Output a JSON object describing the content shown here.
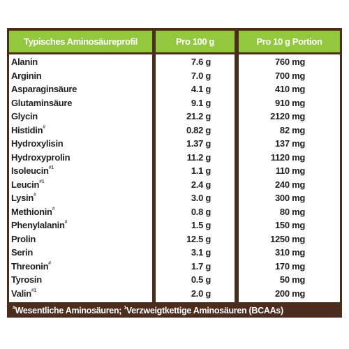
{
  "table": {
    "header": [
      "Typisches Aminosäureprofil",
      "Pro 100 g",
      "Pro 10 g Portion"
    ],
    "rows": [
      {
        "name": "Alanin",
        "sup": null,
        "per100": "7.6 g",
        "portion": "760 mg"
      },
      {
        "name": "Arginin",
        "sup": null,
        "per100": "7.0 g",
        "portion": "700 mg"
      },
      {
        "name": "Asparaginsäure",
        "sup": null,
        "per100": "4.1 g",
        "portion": "410 mg"
      },
      {
        "name": "Glutaminsäure",
        "sup": null,
        "per100": "9.1 g",
        "portion": "910 mg"
      },
      {
        "name": "Glycin",
        "sup": null,
        "per100": "21.2 g",
        "portion": "2120 mg"
      },
      {
        "name": "Histidin",
        "sup": "#",
        "per100": "0.82 g",
        "portion": "82 mg"
      },
      {
        "name": "Hydroxylisin",
        "sup": null,
        "per100": "1.37 g",
        "portion": "137 mg"
      },
      {
        "name": "Hydroxyprolin",
        "sup": null,
        "per100": "11.2 g",
        "portion": "1120 mg"
      },
      {
        "name": "Isoleucin",
        "sup": "#1",
        "per100": "1.1 g",
        "portion": "110 mg"
      },
      {
        "name": "Leucin",
        "sup": "#1",
        "per100": "2.4 g",
        "portion": "240 mg"
      },
      {
        "name": "Lysin",
        "sup": "#",
        "per100": "3.0 g",
        "portion": "300 mg"
      },
      {
        "name": "Methionin",
        "sup": "#",
        "per100": "0.8 g",
        "portion": "80 mg"
      },
      {
        "name": "Phenylalanin",
        "sup": "#",
        "per100": "1.5 g",
        "portion": "150 mg"
      },
      {
        "name": "Prolin",
        "sup": null,
        "per100": "12.5 g",
        "portion": "1250 mg"
      },
      {
        "name": "Serin",
        "sup": null,
        "per100": "3.1 g",
        "portion": "310 mg"
      },
      {
        "name": "Threonin",
        "sup": "#",
        "per100": "1.7 g",
        "portion": "170 mg"
      },
      {
        "name": "Tyrosin",
        "sup": null,
        "per100": "0.5 g",
        "portion": "50 mg"
      },
      {
        "name": "Valin",
        "sup": "#1",
        "per100": "2.0 g",
        "portion": "200 mg"
      }
    ],
    "footer": [
      {
        "sup": "#",
        "text": "Wesentliche Aminosäuren; "
      },
      {
        "sup": "1",
        "text": "Verzweigtkettige Aminosäuren (BCAAs)"
      }
    ]
  }
}
